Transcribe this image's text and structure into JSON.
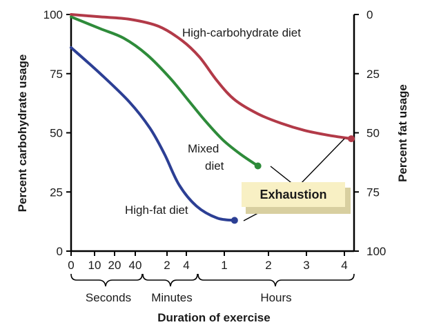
{
  "chart_data": {
    "type": "line",
    "xlabel": "Duration of exercise",
    "ylabel": "Percent carbohydrate usage",
    "y2label": "Percent fat usage",
    "ylim": [
      0,
      100
    ],
    "y2lim": [
      100,
      0
    ],
    "y_ticks": [
      "0",
      "25",
      "50",
      "75",
      "100"
    ],
    "y2_ticks": [
      "0",
      "25",
      "50",
      "75",
      "100"
    ],
    "x_ticks": [
      "0",
      "10",
      "20",
      "40",
      "2",
      "4",
      "1",
      "2",
      "3",
      "4"
    ],
    "x_groups": [
      "Seconds",
      "Minutes",
      "Hours"
    ],
    "legend": "none",
    "grid": false,
    "series": [
      {
        "name": "High-carbohydrate diet",
        "color": "#b23a48",
        "points": [
          [
            0,
            100
          ],
          [
            0.5,
            99
          ],
          [
            1,
            98
          ],
          [
            1.5,
            95
          ],
          [
            1.9,
            89
          ],
          [
            2.2,
            82
          ],
          [
            2.5,
            72
          ],
          [
            2.8,
            64
          ],
          [
            3.2,
            58
          ],
          [
            3.6,
            54
          ],
          [
            4.0,
            51
          ],
          [
            4.4,
            49
          ],
          [
            4.8,
            47.5
          ]
        ],
        "end_marker": true
      },
      {
        "name": "Mixed diet",
        "color": "#2e8b3a",
        "points": [
          [
            0,
            99
          ],
          [
            0.5,
            94
          ],
          [
            0.9,
            90
          ],
          [
            1.3,
            83
          ],
          [
            1.7,
            73
          ],
          [
            2.0,
            64
          ],
          [
            2.3,
            55
          ],
          [
            2.6,
            47
          ],
          [
            2.9,
            41
          ],
          [
            3.2,
            36
          ]
        ],
        "end_marker": true
      },
      {
        "name": "High-fat diet",
        "color": "#2c3f94",
        "points": [
          [
            0,
            86
          ],
          [
            0.5,
            75
          ],
          [
            1.0,
            63
          ],
          [
            1.35,
            52
          ],
          [
            1.6,
            41
          ],
          [
            1.85,
            28
          ],
          [
            2.15,
            19
          ],
          [
            2.5,
            14
          ],
          [
            2.8,
            13
          ]
        ],
        "end_marker": true
      }
    ],
    "annotations": [
      {
        "text": "Exhaustion"
      }
    ]
  }
}
